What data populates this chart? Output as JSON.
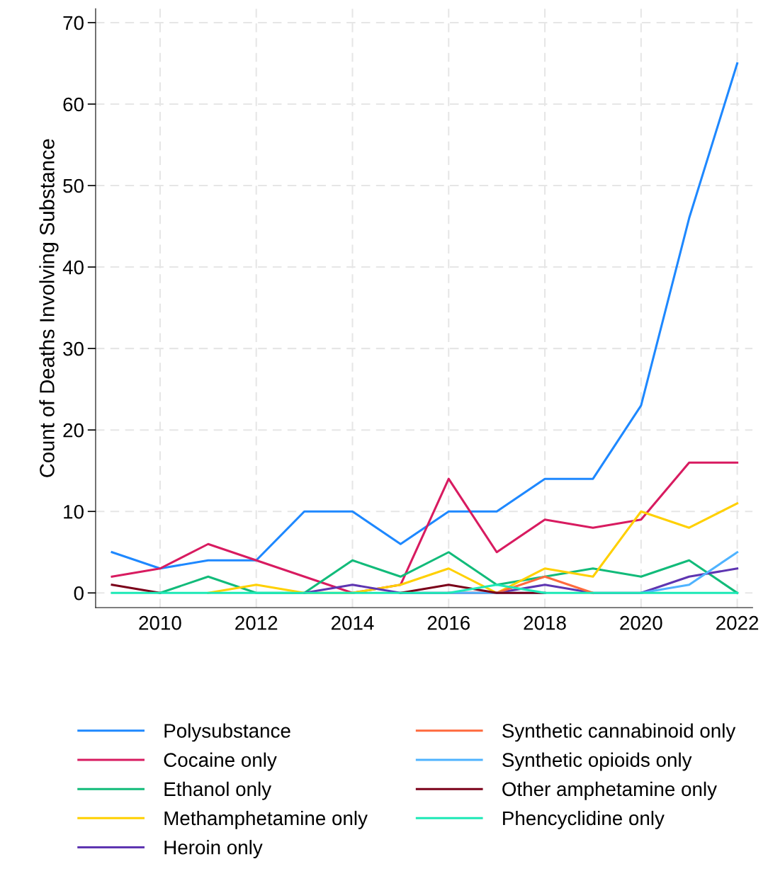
{
  "chart_data": {
    "type": "line",
    "ylabel": "Count of Deaths Involving Substance",
    "x": [
      2009,
      2010,
      2011,
      2012,
      2013,
      2014,
      2015,
      2016,
      2017,
      2018,
      2019,
      2020,
      2021,
      2022
    ],
    "series": [
      {
        "name": "Polysubstance",
        "color": "#1e88ff",
        "values": [
          5,
          3,
          4,
          4,
          10,
          10,
          6,
          10,
          10,
          14,
          14,
          23,
          46,
          65
        ]
      },
      {
        "name": "Cocaine only",
        "color": "#d81b60",
        "values": [
          2,
          3,
          6,
          4,
          2,
          0,
          1,
          14,
          5,
          9,
          8,
          9,
          16,
          16
        ]
      },
      {
        "name": "Ethanol only",
        "color": "#12bb7a",
        "values": [
          null,
          0,
          2,
          0,
          0,
          4,
          2,
          5,
          1,
          2,
          3,
          2,
          4,
          0
        ]
      },
      {
        "name": "Methamphetamine only",
        "color": "#ffd000",
        "values": [
          null,
          null,
          0,
          1,
          0,
          0,
          1,
          3,
          0,
          3,
          2,
          10,
          8,
          11
        ]
      },
      {
        "name": "Heroin only",
        "color": "#5e35b1",
        "values": [
          null,
          null,
          null,
          null,
          0,
          1,
          0,
          0,
          0,
          1,
          0,
          0,
          2,
          3
        ]
      },
      {
        "name": "Synthetic cannabinoid only",
        "color": "#ff6a3d",
        "values": [
          null,
          null,
          null,
          null,
          null,
          null,
          null,
          0,
          0,
          2,
          0,
          null,
          null,
          null
        ]
      },
      {
        "name": "Synthetic opioids only",
        "color": "#4fb3ff",
        "values": [
          null,
          null,
          null,
          null,
          null,
          null,
          null,
          0,
          0,
          0,
          null,
          0,
          1,
          5
        ]
      },
      {
        "name": "Other amphetamine only",
        "color": "#7a0019",
        "values": [
          1,
          0,
          null,
          null,
          null,
          null,
          0,
          1,
          0,
          0,
          null,
          null,
          null,
          null
        ]
      },
      {
        "name": "Phencyclidine only",
        "color": "#1de9b6",
        "values": [
          0,
          0,
          0,
          0,
          0,
          0,
          0,
          0,
          1,
          0,
          0,
          0,
          0,
          0
        ]
      }
    ],
    "xlim": [
      2008.66,
      2022.32
    ],
    "xticks": [
      2010,
      2012,
      2014,
      2016,
      2018,
      2020,
      2022
    ],
    "ylim": [
      -1.8,
      71.7
    ],
    "yticks": [
      0,
      10,
      20,
      30,
      40,
      50,
      60,
      70
    ],
    "grid": true,
    "legend": "bottom",
    "marker": "none",
    "line_style": "solid"
  }
}
